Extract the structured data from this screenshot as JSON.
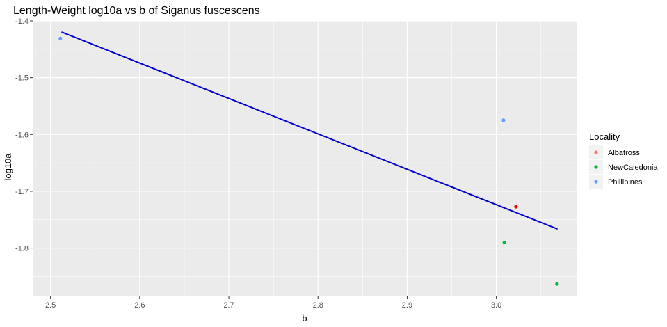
{
  "chart_data": {
    "type": "scatter",
    "title": "Length-Weight log10a vs b of Siganus fuscescens",
    "xlabel": "b",
    "ylabel": "log10a",
    "xlim": [
      2.48,
      3.09
    ],
    "ylim": [
      -1.885,
      -1.4
    ],
    "x_ticks": [
      2.5,
      2.6,
      2.7,
      2.8,
      2.9,
      3.0
    ],
    "x_tick_labels": [
      "2.5",
      "2.6",
      "2.7",
      "2.8",
      "2.9",
      "3.0"
    ],
    "y_ticks": [
      -1.4,
      -1.5,
      -1.6,
      -1.7,
      -1.8
    ],
    "y_tick_labels": [
      "-1.4",
      "-1.5",
      "-1.6",
      "-1.7",
      "-1.8"
    ],
    "grid": true,
    "legend": {
      "title": "Locality",
      "position": "right",
      "entries": [
        {
          "name": "Albatross",
          "color": "#F8766D"
        },
        {
          "name": "NewCaledonia",
          "color": "#00BA38"
        },
        {
          "name": "Phillipines",
          "color": "#619CFF"
        }
      ]
    },
    "series": [
      {
        "name": "Albatross",
        "color": "#FF0000",
        "points": [
          {
            "x": 3.022,
            "y": -1.727
          }
        ]
      },
      {
        "name": "NewCaledonia",
        "color": "#00BA38",
        "points": [
          {
            "x": 3.009,
            "y": -1.79
          },
          {
            "x": 3.068,
            "y": -1.863
          }
        ]
      },
      {
        "name": "Phillipines",
        "color": "#619CFF",
        "points": [
          {
            "x": 2.511,
            "y": -1.431
          },
          {
            "x": 3.008,
            "y": -1.575
          }
        ]
      }
    ],
    "fit_line": {
      "color": "#0000CC",
      "points": [
        {
          "x": 2.513,
          "y": -1.42
        },
        {
          "x": 3.068,
          "y": -1.766
        }
      ]
    },
    "colors": {
      "panel_background": "#EBEBEB",
      "grid": "#FFFFFF"
    }
  }
}
